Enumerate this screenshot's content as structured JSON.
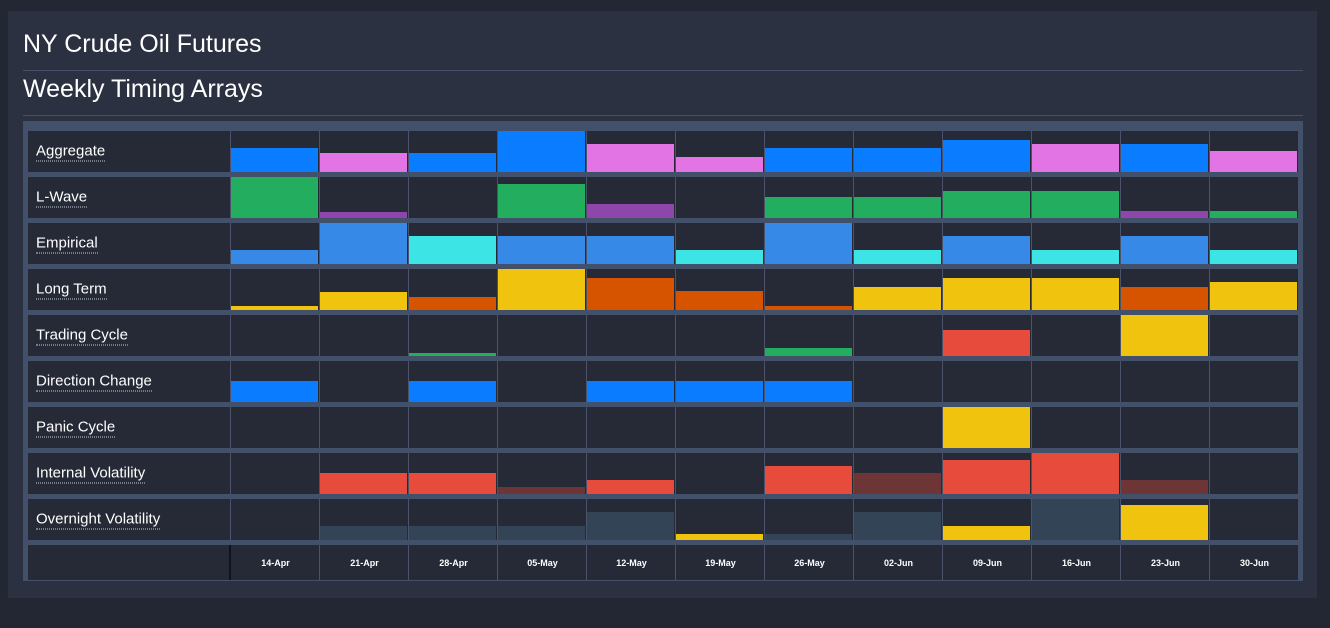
{
  "page": {
    "title": "NY Crude Oil Futures",
    "subtitle": "Weekly Timing Arrays"
  },
  "colors": {
    "blue": "#0a7cff",
    "pink": "#e274e4",
    "green": "#23ad5f",
    "purple": "#8e46ab",
    "lightblue": "#3689e6",
    "cyan": "#3ce4e6",
    "yellow": "#f0c30f",
    "orange": "#d65300",
    "red": "#e74b3c",
    "darkred": "#6d3535",
    "slate": "#334456"
  },
  "chart_data": {
    "type": "bar",
    "categories": [
      "14-Apr",
      "21-Apr",
      "28-Apr",
      "05-May",
      "12-May",
      "19-May",
      "26-May",
      "02-Jun",
      "09-Jun",
      "16-Jun",
      "23-Jun",
      "30-Jun"
    ],
    "level_scale": "fraction of row height (0-1)",
    "series": [
      {
        "name": "Aggregate",
        "values": [
          0.58,
          0.46,
          0.46,
          1.0,
          0.68,
          0.37,
          0.58,
          0.58,
          0.78,
          0.68,
          0.68,
          0.51
        ],
        "colors": [
          "blue",
          "pink",
          "blue",
          "blue",
          "pink",
          "pink",
          "blue",
          "blue",
          "blue",
          "pink",
          "blue",
          "pink"
        ]
      },
      {
        "name": "L-Wave",
        "values": [
          1.0,
          0.15,
          0,
          0.83,
          0.34,
          0,
          0.51,
          0.51,
          0.66,
          0.66,
          0.17,
          0.17
        ],
        "colors": [
          "green",
          "purple",
          "green",
          "green",
          "purple",
          "green",
          "green",
          "green",
          "green",
          "green",
          "purple",
          "green"
        ]
      },
      {
        "name": "Empirical",
        "values": [
          0.34,
          1.0,
          0.68,
          0.68,
          0.68,
          0.34,
          1.0,
          0.34,
          0.68,
          0.34,
          0.68,
          0.34
        ],
        "colors": [
          "lightblue",
          "lightblue",
          "cyan",
          "lightblue",
          "lightblue",
          "cyan",
          "lightblue",
          "cyan",
          "lightblue",
          "cyan",
          "lightblue",
          "cyan"
        ]
      },
      {
        "name": "Long Term",
        "values": [
          0.1,
          0.44,
          0.32,
          1.0,
          0.78,
          0.46,
          0.1,
          0.56,
          0.78,
          0.78,
          0.56,
          0.68
        ],
        "colors": [
          "yellow",
          "yellow",
          "orange",
          "yellow",
          "orange",
          "orange",
          "orange",
          "yellow",
          "yellow",
          "yellow",
          "orange",
          "yellow"
        ]
      },
      {
        "name": "Trading Cycle",
        "values": [
          0,
          0,
          0.07,
          0,
          0,
          0,
          0.2,
          0,
          0.63,
          0,
          1.0,
          0
        ],
        "colors": [
          "green",
          "green",
          "green",
          "green",
          "green",
          "green",
          "green",
          "green",
          "red",
          "green",
          "yellow",
          "green"
        ]
      },
      {
        "name": "Direction Change",
        "values": [
          0.51,
          0,
          0.51,
          0,
          0.51,
          0.51,
          0.51,
          0,
          0,
          0,
          0,
          0
        ],
        "colors": [
          "blue",
          "blue",
          "blue",
          "blue",
          "blue",
          "blue",
          "blue",
          "blue",
          "blue",
          "blue",
          "blue",
          "blue"
        ]
      },
      {
        "name": "Panic Cycle",
        "values": [
          0,
          0,
          0,
          0,
          0,
          0,
          0,
          0,
          1.0,
          0,
          0,
          0
        ],
        "colors": [
          "yellow",
          "yellow",
          "yellow",
          "yellow",
          "yellow",
          "yellow",
          "yellow",
          "yellow",
          "yellow",
          "yellow",
          "yellow",
          "yellow"
        ]
      },
      {
        "name": "Internal Volatility",
        "values": [
          0,
          0.51,
          0.51,
          0.17,
          0.34,
          0,
          0.68,
          0.51,
          0.83,
          1.0,
          0.34,
          0
        ],
        "colors": [
          "red",
          "red",
          "red",
          "darkred",
          "red",
          "red",
          "red",
          "darkred",
          "red",
          "red",
          "darkred",
          "red"
        ]
      },
      {
        "name": "Overnight Volatility",
        "values": [
          0,
          0.34,
          0.34,
          0.34,
          0.68,
          0.15,
          0.15,
          0.68,
          0.34,
          1.0,
          0.85,
          0
        ],
        "colors": [
          "slate",
          "slate",
          "slate",
          "slate",
          "slate",
          "yellow",
          "slate",
          "slate",
          "yellow",
          "slate",
          "yellow",
          "slate"
        ]
      }
    ]
  }
}
